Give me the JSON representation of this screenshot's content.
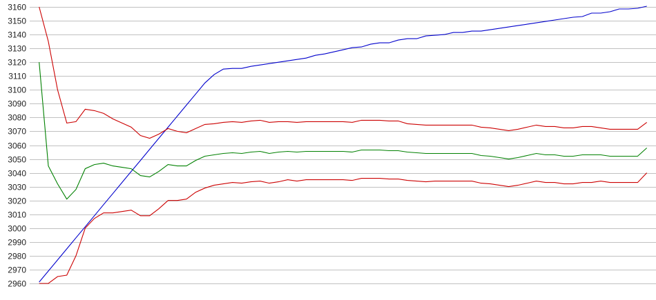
{
  "chart_data": {
    "type": "line",
    "title": "",
    "xlabel": "",
    "ylabel": "",
    "ylim": [
      2960,
      3160
    ],
    "grid": "horizontal",
    "y_ticks": [
      "2960",
      "2970",
      "2980",
      "2990",
      "3000",
      "3010",
      "3020",
      "3030",
      "3040",
      "3050",
      "3060",
      "3070",
      "3080",
      "3090",
      "3100",
      "3110",
      "3120",
      "3130",
      "3140",
      "3150",
      "3160"
    ],
    "x": [
      0,
      1,
      2,
      3,
      4,
      5,
      6,
      7,
      8,
      9,
      10,
      11,
      12,
      13,
      14,
      15,
      16,
      17,
      18,
      19,
      20,
      21,
      22,
      23,
      24,
      25,
      26,
      27,
      28,
      29,
      30,
      31,
      32,
      33,
      34,
      35,
      36,
      37,
      38,
      39,
      40,
      41,
      42,
      43,
      44,
      45,
      46,
      47,
      48,
      49,
      50,
      51,
      52,
      53,
      54,
      55,
      56,
      57,
      58,
      59,
      60,
      61,
      62,
      63,
      64,
      65,
      66
    ],
    "series": [
      {
        "name": "blue",
        "color": "#0000cc",
        "values": [
          2961,
          2969,
          2977,
          2985,
          2993,
          3001,
          3009,
          3017,
          3025,
          3033,
          3041,
          3049,
          3057,
          3065,
          3073,
          3081,
          3089,
          3097,
          3105,
          3111,
          3115,
          3115.5,
          3115.5,
          3117,
          3118,
          3119,
          3120,
          3121,
          3122,
          3123,
          3125,
          3126,
          3127.5,
          3129,
          3130.5,
          3131,
          3133,
          3134,
          3134,
          3136,
          3137,
          3137,
          3139,
          3139.5,
          3140,
          3141.5,
          3141.5,
          3142.5,
          3142.5,
          3143.5,
          3144.5,
          3145.5,
          3146.5,
          3147.5,
          3148.5,
          3149.5,
          3150.5,
          3151.5,
          3152.5,
          3153,
          3155.5,
          3155.5,
          3156.5,
          3158.5,
          3158.5,
          3159,
          3160.5
        ]
      },
      {
        "name": "upper-red",
        "color": "#cc0000",
        "values": [
          3160,
          3135,
          3100,
          3076,
          3077,
          3086,
          3085,
          3083,
          3079,
          3076,
          3073,
          3067,
          3065,
          3068,
          3072,
          3070,
          3069,
          3072,
          3075,
          3075.5,
          3076.5,
          3077,
          3076.5,
          3077.5,
          3078,
          3076.5,
          3077,
          3077,
          3076.5,
          3077,
          3077,
          3077,
          3077,
          3077,
          3076.5,
          3078,
          3078,
          3078,
          3077.5,
          3077.5,
          3075.5,
          3075,
          3074.5,
          3074.5,
          3074.5,
          3074.5,
          3074.5,
          3074.5,
          3073,
          3072.5,
          3071.5,
          3070.5,
          3071.5,
          3073,
          3074.5,
          3073.5,
          3073.5,
          3072.5,
          3072.5,
          3073.5,
          3073.5,
          3072.5,
          3071.5,
          3071.5,
          3071.5,
          3071.5,
          3076.5
        ]
      },
      {
        "name": "green",
        "color": "#008000",
        "values": [
          3120,
          3045,
          3032,
          3021,
          3028,
          3043,
          3046,
          3047,
          3045,
          3044,
          3043,
          3038,
          3037,
          3041,
          3046,
          3045,
          3045,
          3049,
          3052,
          3053,
          3054,
          3054.5,
          3054,
          3055,
          3055.5,
          3054,
          3055,
          3055.5,
          3055,
          3055.5,
          3055.5,
          3055.5,
          3055.5,
          3055.5,
          3055,
          3056.5,
          3056.5,
          3056.5,
          3056,
          3056,
          3055,
          3054.5,
          3054,
          3054,
          3054,
          3054,
          3054,
          3054,
          3052.5,
          3052,
          3051,
          3050,
          3051,
          3052.5,
          3054,
          3053,
          3053,
          3052,
          3052,
          3053,
          3053,
          3053,
          3052,
          3052,
          3052,
          3052,
          3058
        ]
      },
      {
        "name": "lower-red",
        "color": "#cc0000",
        "values": [
          2960,
          2960,
          2965,
          2966,
          2980,
          3000,
          3007,
          3011,
          3011,
          3012,
          3013,
          3009,
          3009,
          3014,
          3020,
          3020,
          3021,
          3026,
          3029,
          3031,
          3032,
          3033,
          3032.5,
          3033.5,
          3034,
          3032.5,
          3033.5,
          3035,
          3034,
          3035,
          3035,
          3035,
          3035,
          3035,
          3034.5,
          3036,
          3036,
          3036,
          3035.5,
          3035.5,
          3034.5,
          3034,
          3033.5,
          3034,
          3034,
          3034,
          3034,
          3034,
          3032.5,
          3032,
          3031,
          3030,
          3031,
          3032.5,
          3034,
          3033,
          3033,
          3032,
          3032,
          3033,
          3033,
          3034,
          3033,
          3033,
          3033,
          3033,
          3040
        ]
      }
    ]
  }
}
